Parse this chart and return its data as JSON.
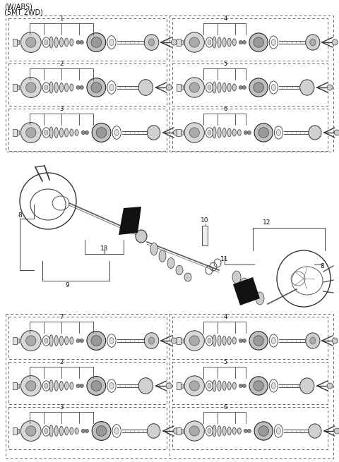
{
  "title_line1": "(W/ABS)",
  "title_line2": "(5MT 2WD)",
  "bg_color": "#ffffff",
  "text_color": "#000000",
  "fig_width": 4.8,
  "fig_height": 6.55,
  "dpi": 100,
  "labels_top_left": [
    "1",
    "2",
    "3"
  ],
  "labels_top_right": [
    "4",
    "5",
    "6"
  ],
  "labels_bottom_left": [
    "7",
    "2",
    "3"
  ],
  "labels_bottom_right": [
    "4",
    "5",
    "6"
  ]
}
